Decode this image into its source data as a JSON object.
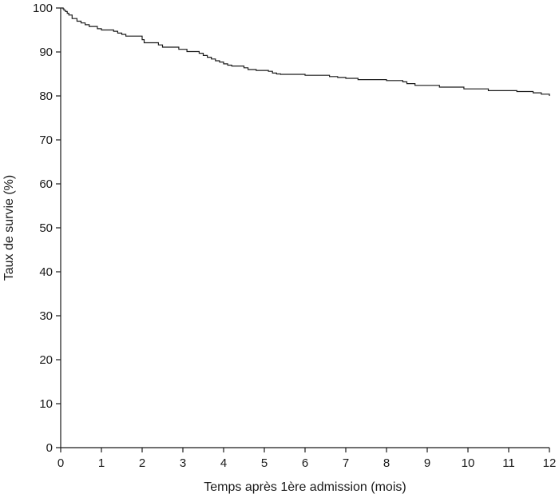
{
  "chart_data": {
    "type": "line",
    "title": "",
    "xlabel": "Temps après 1ère admission (mois)",
    "ylabel": "Taux de survie (%)",
    "xlim": [
      0,
      12
    ],
    "ylim": [
      0,
      100
    ],
    "xticks": [
      "0",
      "1",
      "2",
      "3",
      "4",
      "5",
      "6",
      "7",
      "8",
      "9",
      "10",
      "11",
      "12"
    ],
    "yticks": [
      "0",
      "10",
      "20",
      "30",
      "40",
      "50",
      "60",
      "70",
      "80",
      "90",
      "100"
    ],
    "grid": false,
    "legend": "none",
    "line_color": "#1a1a1a",
    "series": [
      {
        "step": "post",
        "x": [
          0,
          0.06,
          0.08,
          0.12,
          0.16,
          0.2,
          0.28,
          0.4,
          0.5,
          0.6,
          0.7,
          0.9,
          1.0,
          1.3,
          1.4,
          1.5,
          1.6,
          2.0,
          2.05,
          2.4,
          2.5,
          2.9,
          3.1,
          3.4,
          3.5,
          3.6,
          3.7,
          3.8,
          3.9,
          4.0,
          4.1,
          4.2,
          4.5,
          4.6,
          4.8,
          5.1,
          5.2,
          5.3,
          5.4,
          6.0,
          6.6,
          6.8,
          7.0,
          7.3,
          8.0,
          8.4,
          8.5,
          8.7,
          9.3,
          9.9,
          10.5,
          11.2,
          11.6,
          11.8,
          12.0
        ],
        "y": [
          100,
          99.8,
          99.5,
          99.2,
          98.8,
          98.4,
          97.6,
          97.0,
          96.6,
          96.2,
          95.8,
          95.3,
          95.0,
          94.7,
          94.3,
          94.0,
          93.6,
          92.8,
          92.1,
          91.6,
          91.1,
          90.6,
          90.1,
          89.7,
          89.2,
          88.8,
          88.4,
          88.0,
          87.7,
          87.3,
          87.0,
          86.8,
          86.4,
          86.0,
          85.8,
          85.6,
          85.2,
          85.0,
          84.9,
          84.7,
          84.4,
          84.2,
          84.0,
          83.7,
          83.5,
          83.2,
          82.8,
          82.4,
          82.0,
          81.6,
          81.2,
          81.0,
          80.7,
          80.4,
          80.0
        ]
      }
    ]
  }
}
